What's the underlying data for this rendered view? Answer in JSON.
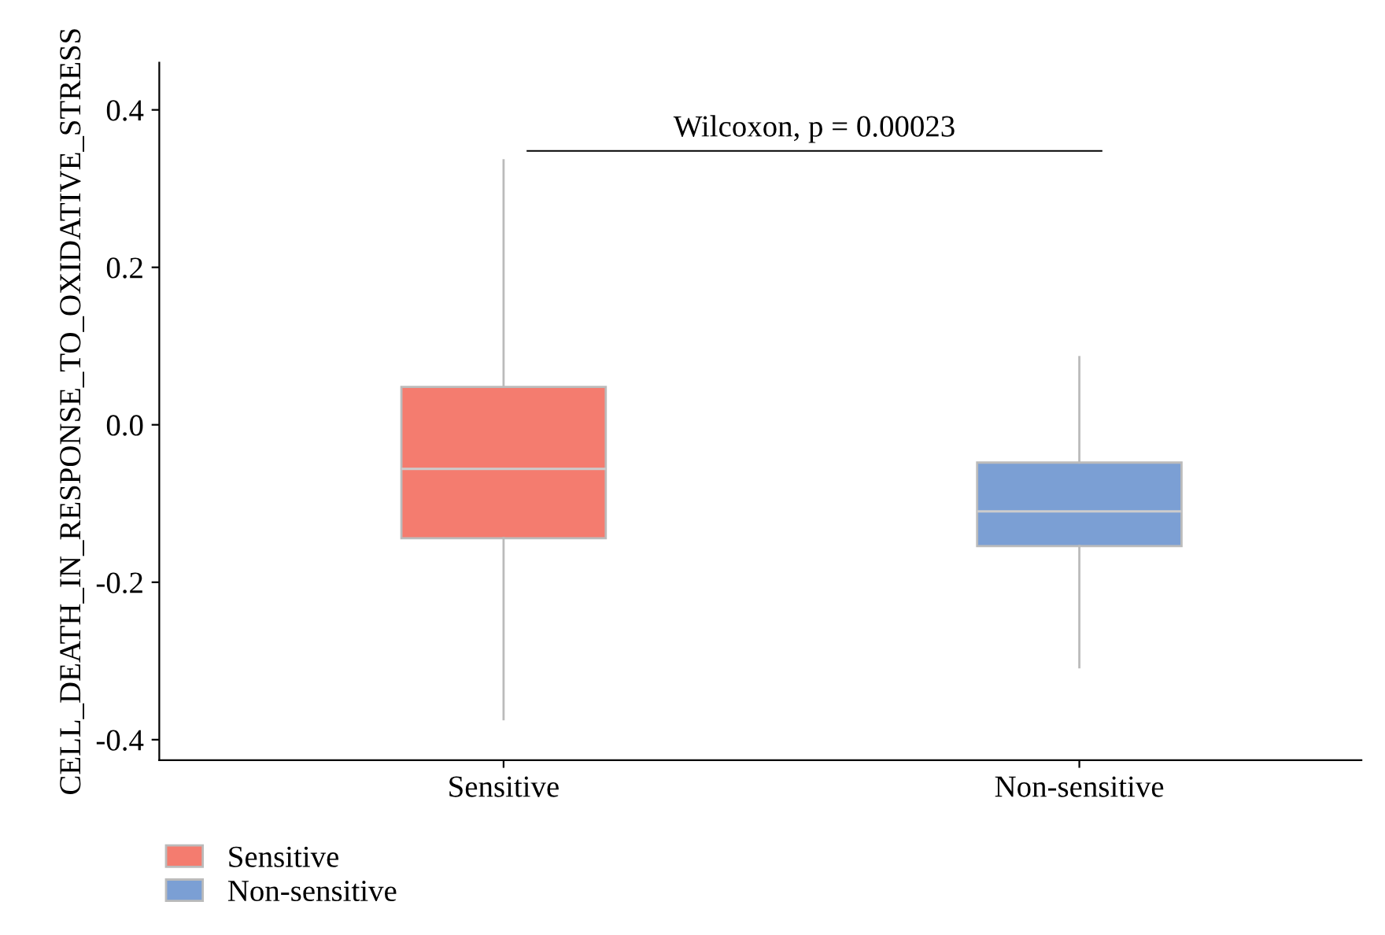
{
  "chart_data": {
    "type": "box",
    "ylabel": "CELL_DEATH_IN_RESPONSE_TO_OXIDATIVE_STRESS",
    "categories": [
      "Sensitive",
      "Non-sensitive"
    ],
    "series": [
      {
        "name": "Sensitive",
        "color": "#f47c6f",
        "boxes": [
          {
            "low": -0.374,
            "q1": -0.144,
            "median": -0.056,
            "q3": 0.048,
            "high": 0.336
          },
          null
        ]
      },
      {
        "name": "Non-sensitive",
        "color": "#7b9fd4",
        "boxes": [
          null,
          {
            "low": -0.308,
            "q1": -0.154,
            "median": -0.11,
            "q3": -0.048,
            "high": 0.086
          }
        ]
      }
    ],
    "annotations": [
      "Wilcoxon, p = 0.00023"
    ],
    "ylim": [
      -0.426,
      0.46
    ],
    "yticks": [
      -0.4,
      -0.2,
      {
        "value": 0,
        "label": "0.0"
      },
      0.2,
      0.4
    ],
    "grid": false,
    "legend": "bottom left"
  }
}
